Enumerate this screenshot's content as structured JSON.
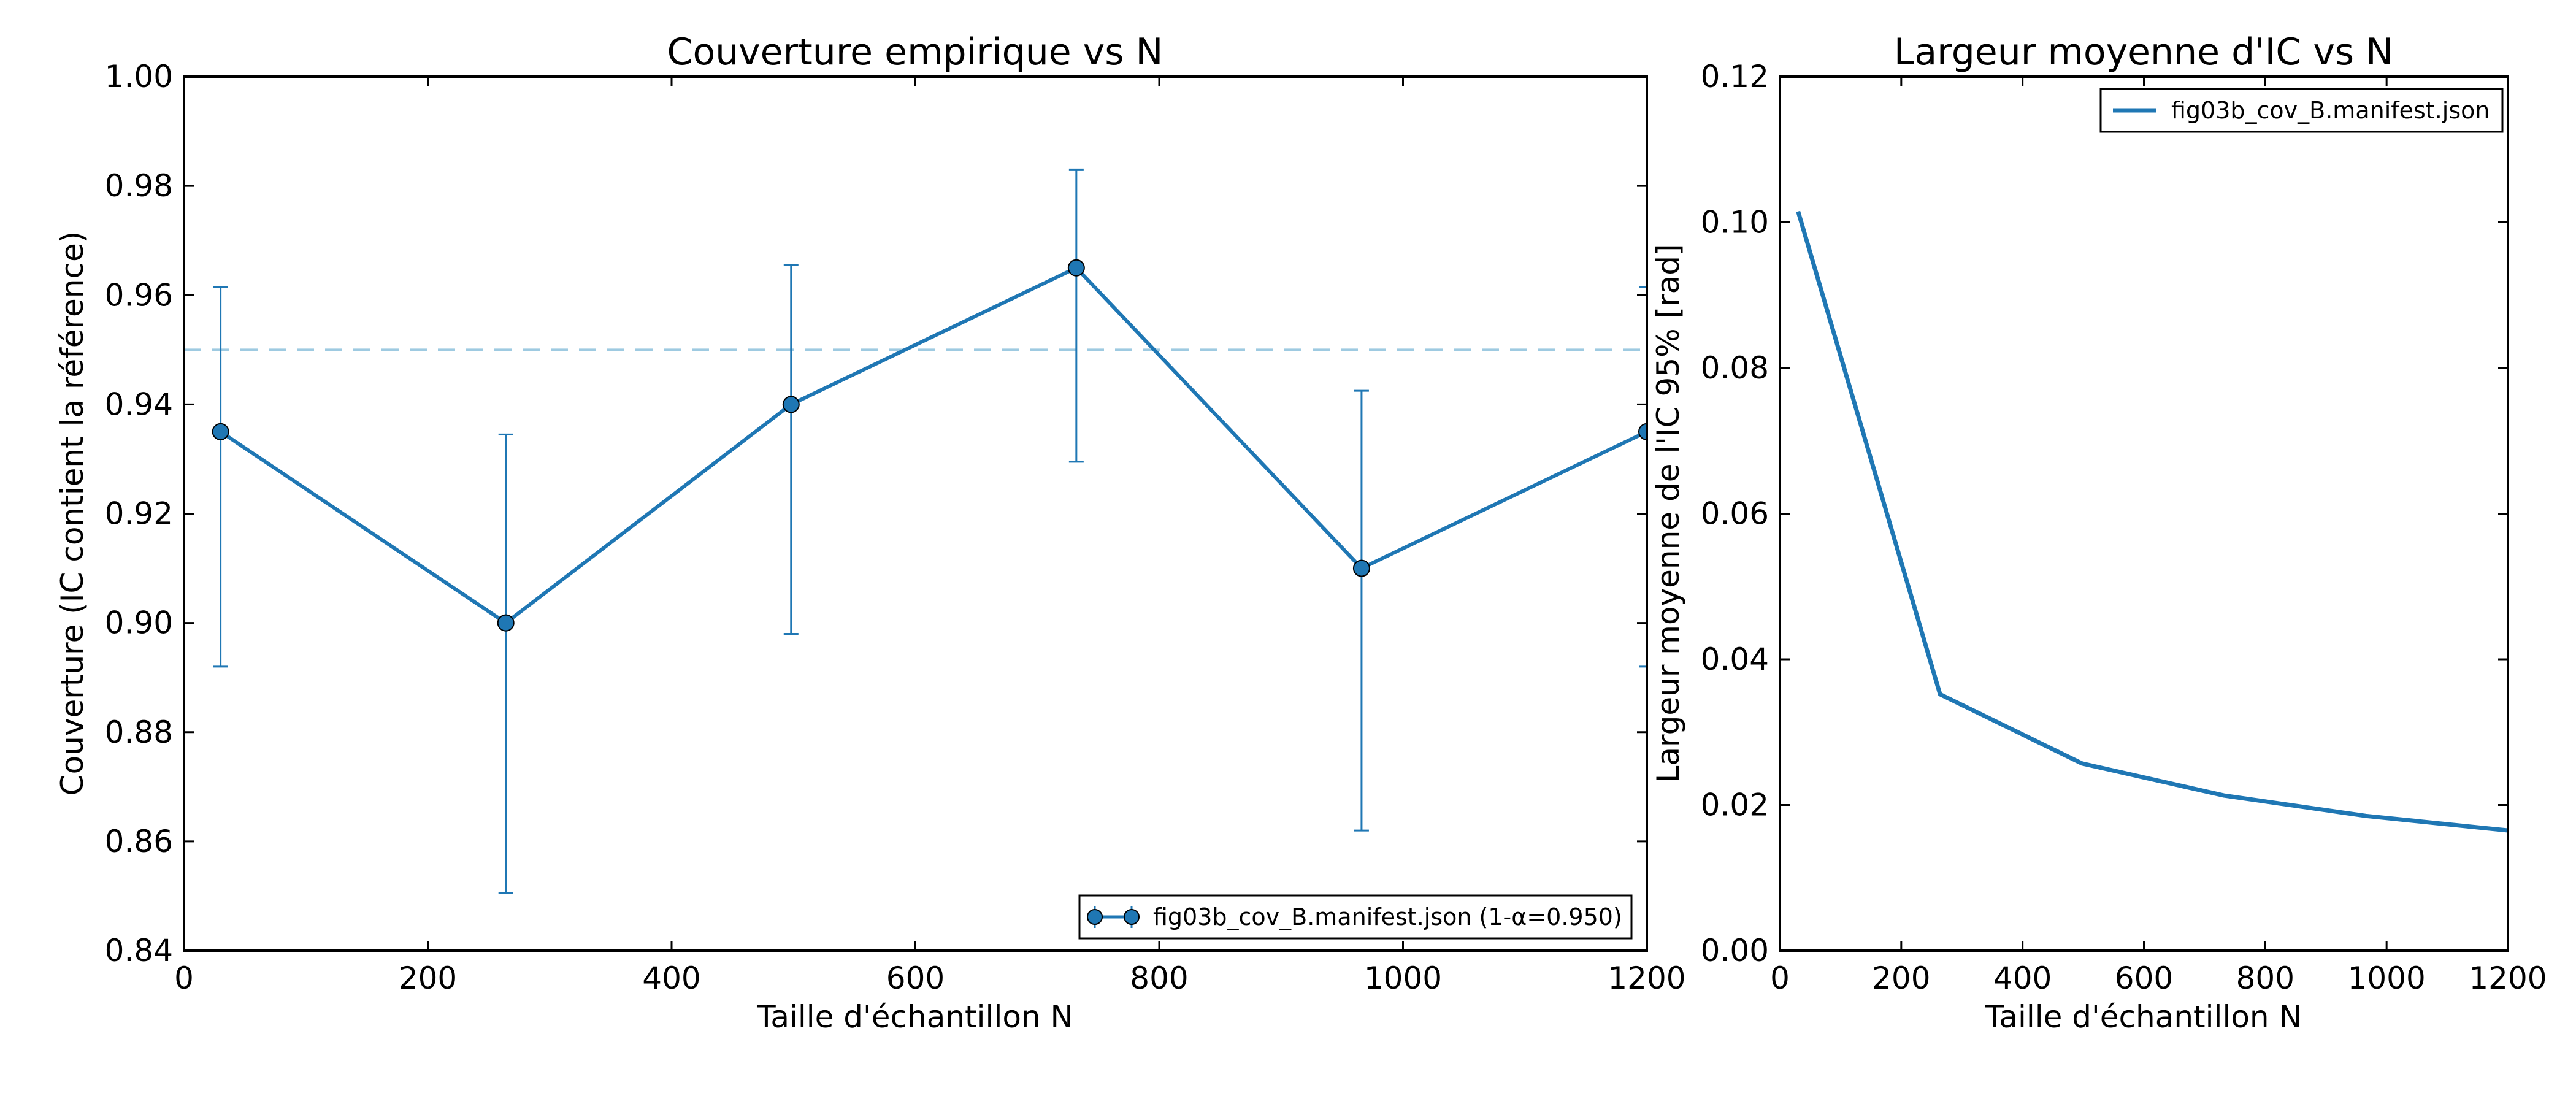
{
  "chart_data": [
    {
      "type": "line",
      "title": "Couverture empirique vs N",
      "xlabel": "Taille d'échantillon N",
      "ylabel": "Couverture (IC contient la référence)",
      "xlim": [
        0,
        1200
      ],
      "ylim": [
        0.84,
        1.0
      ],
      "xticks": [
        "0",
        "200",
        "400",
        "600",
        "800",
        "1000",
        "1200"
      ],
      "yticks": [
        "0.84",
        "0.86",
        "0.88",
        "0.90",
        "0.92",
        "0.94",
        "0.96",
        "0.98",
        "1.00"
      ],
      "grid": false,
      "legend_position": "lower-right",
      "reference_line": {
        "y": 0.95,
        "style": "dashed"
      },
      "series": [
        {
          "name": "fig03b_cov_B.manifest.json (1-α=0.950)",
          "color": "#1f77b4",
          "marker": "circle",
          "x": [
            30,
            264,
            498,
            732,
            966,
            1200
          ],
          "y": [
            0.935,
            0.9,
            0.94,
            0.965,
            0.91,
            0.935
          ],
          "err_low": [
            0.892,
            0.8505,
            0.898,
            0.9295,
            0.862,
            0.892
          ],
          "err_high": [
            0.9615,
            0.9345,
            0.9655,
            0.983,
            0.9425,
            0.9615
          ]
        }
      ]
    },
    {
      "type": "line",
      "title": "Largeur moyenne d'IC vs N",
      "xlabel": "Taille d'échantillon N",
      "ylabel": "Largeur moyenne de l'IC 95% [rad]",
      "xlim": [
        0,
        1200
      ],
      "ylim": [
        0.0,
        0.12
      ],
      "xticks": [
        "0",
        "200",
        "400",
        "600",
        "800",
        "1000",
        "1200"
      ],
      "yticks": [
        "0.00",
        "0.02",
        "0.04",
        "0.06",
        "0.08",
        "0.10",
        "0.12"
      ],
      "grid": false,
      "legend_position": "upper-right",
      "series": [
        {
          "name": "fig03b_cov_B.manifest.json",
          "color": "#1f77b4",
          "x": [
            30,
            264,
            498,
            732,
            966,
            1200
          ],
          "y": [
            0.1015,
            0.0352,
            0.0257,
            0.0213,
            0.0185,
            0.0165
          ]
        }
      ]
    }
  ]
}
